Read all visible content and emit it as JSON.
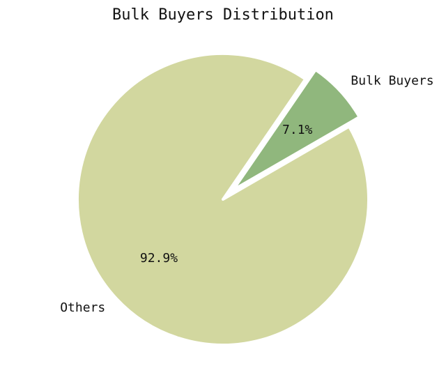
{
  "chart_data": {
    "type": "pie",
    "title": "Bulk Buyers Distribution",
    "slices": [
      {
        "label": "Bulk Buyers",
        "value": 7.1,
        "pct_label": "7.1%",
        "color": "#90b77d",
        "exploded": true
      },
      {
        "label": "Others",
        "value": 92.9,
        "pct_label": "92.9%",
        "color": "#d2d79f",
        "exploded": false
      }
    ]
  }
}
